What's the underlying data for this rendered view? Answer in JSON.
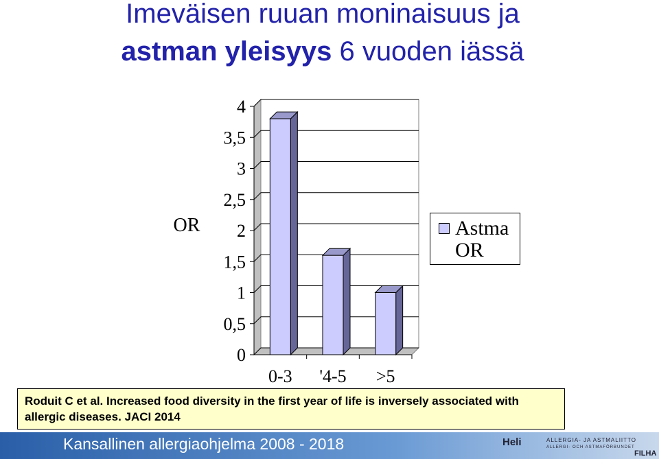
{
  "title": {
    "line1": "Imeväisen ruuan moninaisuus ja",
    "line2_bold": "astman yleisyys",
    "line2_rest": "6 vuoden iässä"
  },
  "chart_data": {
    "type": "bar3d",
    "y_label": "OR",
    "categories": [
      "0-3",
      "'4-5",
      ">5"
    ],
    "series": [
      {
        "name": "Astma OR",
        "color": "#ccccff",
        "values": [
          3.8,
          1.6,
          1.0
        ]
      }
    ],
    "ylim": [
      0,
      4
    ],
    "yticks": [
      0,
      {
        "value": 0.5,
        "label": "0,5"
      },
      1,
      {
        "value": 1.5,
        "label": "1,5"
      },
      2,
      {
        "value": 2.5,
        "label": "2,5"
      },
      3,
      {
        "value": 3.5,
        "label": "3,5"
      },
      4
    ],
    "grid": true,
    "legend": "right"
  },
  "citation": "Roduit C et al. Increased food diversity in the first year of life is inversely associated with allergic diseases. JACI 2014",
  "footer": "Kansallinen allergiaohjelma 2008 - 2018",
  "logos": {
    "heli": "Heli",
    "liitto_fi": "ALLERGIA- JA ASTMALIITTO",
    "liitto_sv": "ALLERGI- OCH ASTMAFÖRBUNDET",
    "filha": "FILHA"
  }
}
